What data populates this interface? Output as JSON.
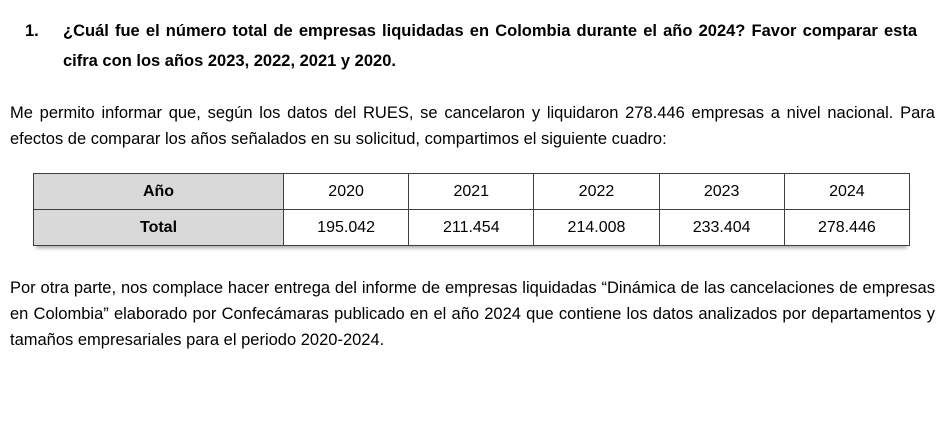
{
  "question": {
    "number": "1.",
    "text": "¿Cuál fue el número total de empresas liquidadas en Colombia durante el año 2024? Favor comparar esta cifra con los años 2023, 2022, 2021 y 2020."
  },
  "intro_paragraph": "Me permito informar que, según los datos del RUES, se cancelaron y liquidaron 278.446 empresas a nivel nacional. Para efectos de comparar los años señalados en su solicitud, compartimos el siguiente cuadro:",
  "table": {
    "header_label": "Año",
    "row_label": "Total",
    "years": [
      "2020",
      "2021",
      "2022",
      "2023",
      "2024"
    ],
    "totals": [
      "195.042",
      "211.454",
      "214.008",
      "233.404",
      "278.446"
    ]
  },
  "closing_paragraph": "Por otra parte, nos complace hacer entrega del informe de empresas liquidadas “Dinámica de las cancelaciones de empresas en Colombia” elaborado por Confecámaras publicado en el año 2024 que contiene los datos analizados por departamentos y tamaños empresariales para el periodo 2020-2024.",
  "colors": {
    "table_header_bg": "#d9d9d9",
    "table_border": "#3f3f3f",
    "text": "#000000",
    "background": "#ffffff"
  }
}
